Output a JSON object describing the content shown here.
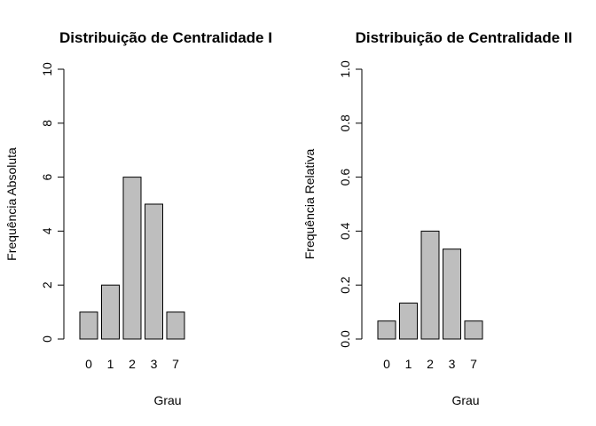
{
  "chart_data": [
    {
      "type": "bar",
      "title": "Distribuição de Centralidade I",
      "xlabel": "Grau",
      "ylabel": "Frequência Absoluta",
      "categories": [
        "0",
        "1",
        "2",
        "3",
        "7"
      ],
      "values": [
        1,
        2,
        6,
        5,
        1
      ],
      "ylim": [
        0,
        10
      ],
      "yticks": [
        "0",
        "2",
        "4",
        "6",
        "8",
        "10"
      ],
      "bar_color": "#bebebe",
      "grid": false
    },
    {
      "type": "bar",
      "title": "Distribuição de Centralidade II",
      "xlabel": "Grau",
      "ylabel": "Frequência Relativa",
      "categories": [
        "0",
        "1",
        "2",
        "3",
        "7"
      ],
      "values": [
        0.0667,
        0.1333,
        0.4,
        0.3333,
        0.0667
      ],
      "ylim": [
        0,
        1
      ],
      "yticks": [
        "0.0",
        "0.2",
        "0.4",
        "0.6",
        "0.8",
        "1.0"
      ],
      "bar_color": "#bebebe",
      "grid": false
    }
  ]
}
